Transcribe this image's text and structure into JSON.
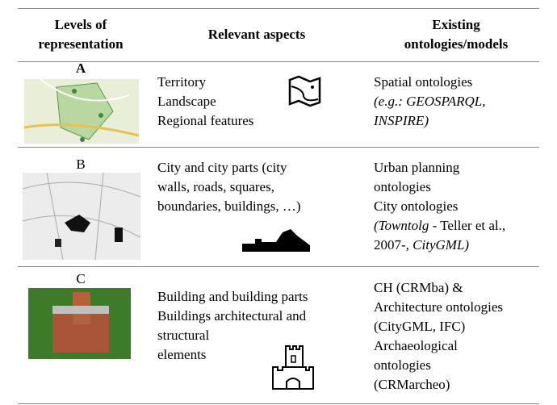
{
  "table": {
    "header": [
      [
        "Levels of",
        "representation"
      ],
      [
        "Relevant aspects"
      ],
      [
        "Existing",
        "ontologies/models"
      ]
    ],
    "rows": [
      {
        "level": "A",
        "aspects": [
          [
            {
              "text": "Territory"
            }
          ],
          [
            {
              "text": "Landscape"
            }
          ],
          [
            {
              "text": "Regional features"
            }
          ]
        ],
        "models": [
          [
            {
              "text": "Spatial ontologies"
            }
          ],
          [
            {
              "text": "(e.g.: GEOSPARQL,",
              "italic": true
            }
          ],
          [
            {
              "text": "INSPIRE)",
              "italic": true
            }
          ]
        ]
      },
      {
        "level": "B",
        "aspects": [
          [
            {
              "text": "City and city parts (city"
            }
          ],
          [
            {
              "text": "walls, roads, squares,"
            }
          ],
          [
            {
              "text": "boundaries, buildings, …)"
            }
          ]
        ],
        "models": [
          [
            {
              "text": "Urban planning"
            }
          ],
          [
            {
              "text": "ontologies"
            }
          ],
          [
            {
              "text": "City ontologies"
            }
          ],
          [
            {
              "text": "(Towntolg",
              "italic": true
            },
            {
              "text": " - Teller et al.,"
            }
          ],
          [
            {
              "text": "2007-"
            },
            {
              "text": ", CityGML)",
              "italic": true
            }
          ]
        ]
      },
      {
        "level": "C",
        "aspects": [
          [
            {
              "text": "Building and building parts"
            }
          ],
          [
            {
              "text": "Buildings architectural and"
            }
          ],
          [
            {
              "text": "structural"
            }
          ],
          [
            {
              "text": "elements"
            }
          ]
        ],
        "models": [
          [
            {
              "text": "CH (CRMba) &"
            }
          ],
          [
            {
              "text": "Architecture ontologies"
            }
          ],
          [
            {
              "text": "(CityGML, IFC)"
            }
          ],
          [
            {
              "text": "Archaeological"
            }
          ],
          [
            {
              "text": "ontologies"
            }
          ],
          [
            {
              "text": "(CRMarcheo)"
            }
          ]
        ]
      }
    ]
  }
}
